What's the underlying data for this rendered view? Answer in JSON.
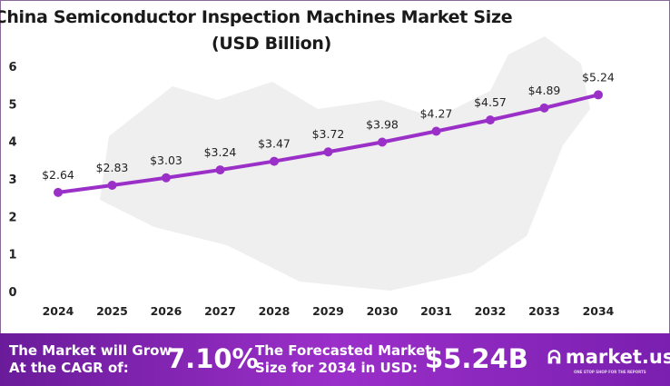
{
  "chart_data": {
    "type": "line",
    "title": "China Semiconductor Inspection Machines Market Size",
    "subtitle": "(USD Billion)",
    "categories": [
      "2024",
      "2025",
      "2026",
      "2027",
      "2028",
      "2029",
      "2030",
      "2031",
      "2032",
      "2033",
      "2034"
    ],
    "values": [
      2.64,
      2.83,
      3.03,
      3.24,
      3.47,
      3.72,
      3.98,
      4.27,
      4.57,
      4.89,
      5.24
    ],
    "data_labels": [
      "$2.64",
      "$2.83",
      "$3.03",
      "$3.24",
      "$3.47",
      "$3.72",
      "$3.98",
      "$4.27",
      "$4.57",
      "$4.89",
      "$5.24"
    ],
    "yticks": [
      "0",
      "1",
      "2",
      "3",
      "4",
      "5",
      "6"
    ],
    "ylim": [
      0,
      6
    ],
    "grid": false,
    "line_color": "#9b30c8"
  },
  "banner": {
    "cagr_label": [
      "The Market will Grow",
      "At the CAGR of:"
    ],
    "cagr_value": "7.10%",
    "forecast_label": [
      "The Forecasted Market",
      "Size for 2034 in USD:"
    ],
    "forecast_value": "$5.24B",
    "brand": "market.us",
    "brand_tagline": "ONE STOP SHOP FOR THE REPORTS"
  }
}
